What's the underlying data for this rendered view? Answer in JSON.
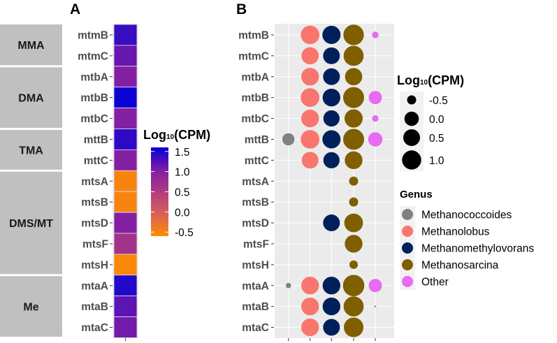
{
  "chart_data": [
    {
      "type": "heatmap",
      "panel_label": "A",
      "genes": [
        "mtmB",
        "mtmC",
        "mtbA",
        "mtbB",
        "mtbC",
        "mttB",
        "mttC",
        "mtsA",
        "mtsB",
        "mtsD",
        "mtsF",
        "mtsH",
        "mtaA",
        "mtaB",
        "mtaC"
      ],
      "groups": [
        {
          "label": "MMA",
          "count": 2
        },
        {
          "label": "DMA",
          "count": 3
        },
        {
          "label": "TMA",
          "count": 2
        },
        {
          "label": "DMS/MT",
          "count": 5
        },
        {
          "label": "Me",
          "count": 3
        }
      ],
      "values": [
        1.35,
        1.15,
        1.0,
        1.55,
        1.0,
        1.4,
        1.0,
        -0.5,
        -0.5,
        1.0,
        0.65,
        -0.55,
        1.45,
        1.2,
        1.1
      ],
      "colorbar": {
        "title_main": "Log",
        "title_sub": "10",
        "title_rest": "(CPM)",
        "ticks": [
          "1.5",
          "1.0",
          "0.5",
          "0.0",
          "-0.5"
        ],
        "tick_values": [
          1.5,
          1.0,
          0.5,
          0.0,
          -0.5
        ],
        "range": [
          -0.6,
          1.6
        ],
        "colors": [
          "#FF8C00",
          "#D86058",
          "#B03C80",
          "#7E1CA6",
          "#0000D8"
        ]
      }
    },
    {
      "type": "scatter",
      "subtype": "bubble",
      "panel_label": "B",
      "genes": [
        "mtmB",
        "mtmC",
        "mtbA",
        "mtbB",
        "mtbC",
        "mttB",
        "mttC",
        "mtsA",
        "mtsB",
        "mtsD",
        "mtsF",
        "mtsH",
        "mtaA",
        "mtaB",
        "mtaC"
      ],
      "genera": [
        {
          "name": "Methanococcoides",
          "color": "#808080"
        },
        {
          "name": "Methanolobus",
          "color": "#F8766D"
        },
        {
          "name": "Methanomethylovorans",
          "color": "#00205B"
        },
        {
          "name": "Methanosarcina",
          "color": "#7F5F00"
        },
        {
          "name": "Other",
          "color": "#E76BF3"
        }
      ],
      "values": [
        [
          null,
          0.9,
          0.8,
          1.3,
          -0.7
        ],
        [
          null,
          0.6,
          0.5,
          1.2,
          null
        ],
        [
          null,
          0.7,
          0.5,
          0.6,
          null
        ],
        [
          null,
          0.9,
          0.7,
          1.4,
          -0.1
        ],
        [
          null,
          0.7,
          0.4,
          0.8,
          -0.7
        ],
        [
          -0.2,
          0.9,
          0.8,
          1.4,
          0.0
        ],
        [
          null,
          0.5,
          0.4,
          0.7,
          null
        ],
        [
          null,
          null,
          null,
          -0.5,
          null
        ],
        [
          null,
          null,
          null,
          -0.5,
          null
        ],
        [
          null,
          null,
          0.5,
          0.9,
          null
        ],
        [
          null,
          null,
          null,
          0.7,
          null
        ],
        [
          null,
          null,
          null,
          -0.55,
          null
        ],
        [
          -0.8,
          0.7,
          0.7,
          1.5,
          -0.1
        ],
        [
          null,
          0.7,
          0.7,
          1.2,
          -1.1
        ],
        [
          null,
          0.7,
          0.5,
          1.1,
          null
        ]
      ],
      "size_legend": {
        "title_main": "Log",
        "title_sub": "10",
        "title_rest": "(CPM)",
        "labels": [
          "-0.5",
          "0.0",
          "0.5",
          "1.0"
        ],
        "values": [
          -0.5,
          0.0,
          0.5,
          1.0
        ]
      },
      "color_legend_title": "Genus",
      "grid": true
    }
  ]
}
